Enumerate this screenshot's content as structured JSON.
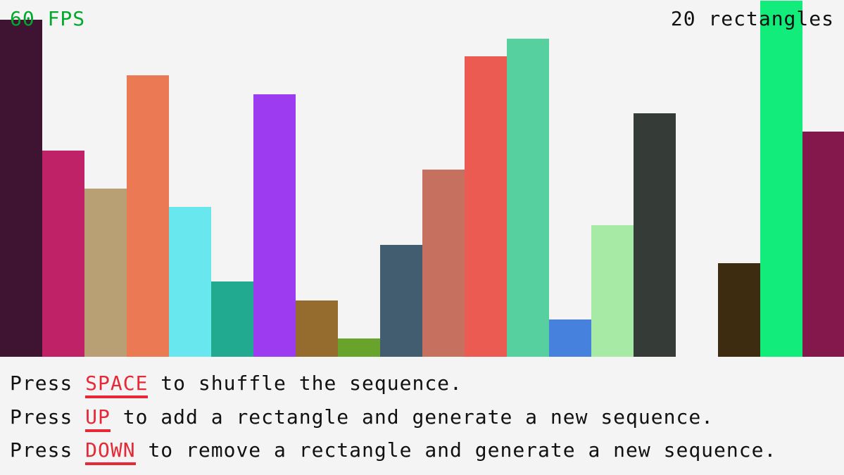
{
  "fps_label": "60 FPS",
  "count_label": "20 rectangles",
  "colors": {
    "fps": "#00a82c",
    "key": "#e62937",
    "background": "#f4f4f4"
  },
  "rectangles": [
    {
      "height": 479,
      "color": "#3f1432"
    },
    {
      "height": 293,
      "color": "#bf2266"
    },
    {
      "height": 239,
      "color": "#b8a074"
    },
    {
      "height": 400,
      "color": "#eb7a54"
    },
    {
      "height": 213,
      "color": "#68e8ee"
    },
    {
      "height": 107,
      "color": "#22aa90"
    },
    {
      "height": 373,
      "color": "#9d3bf0"
    },
    {
      "height": 80,
      "color": "#966c2e"
    },
    {
      "height": 26,
      "color": "#68a42c"
    },
    {
      "height": 159,
      "color": "#425d70"
    },
    {
      "height": 266,
      "color": "#c6715f"
    },
    {
      "height": 427,
      "color": "#ec5b51"
    },
    {
      "height": 452,
      "color": "#57d09f"
    },
    {
      "height": 53,
      "color": "#4781de"
    },
    {
      "height": 187,
      "color": "#a7eaa6"
    },
    {
      "height": 346,
      "color": "#353b37"
    },
    {
      "height": 0,
      "color": "#f4f4f4"
    },
    {
      "height": 133,
      "color": "#3e2c10"
    },
    {
      "height": 506,
      "color": "#12ec7a"
    },
    {
      "height": 320,
      "color": "#84184c"
    }
  ],
  "instructions": [
    {
      "pre": "Press ",
      "key": "SPACE",
      "post": " to shuffle the sequence."
    },
    {
      "pre": "Press ",
      "key": "UP",
      "post": " to add a rectangle and generate a new sequence."
    },
    {
      "pre": "Press ",
      "key": "DOWN",
      "post": " to remove a rectangle and generate a new sequence."
    }
  ]
}
